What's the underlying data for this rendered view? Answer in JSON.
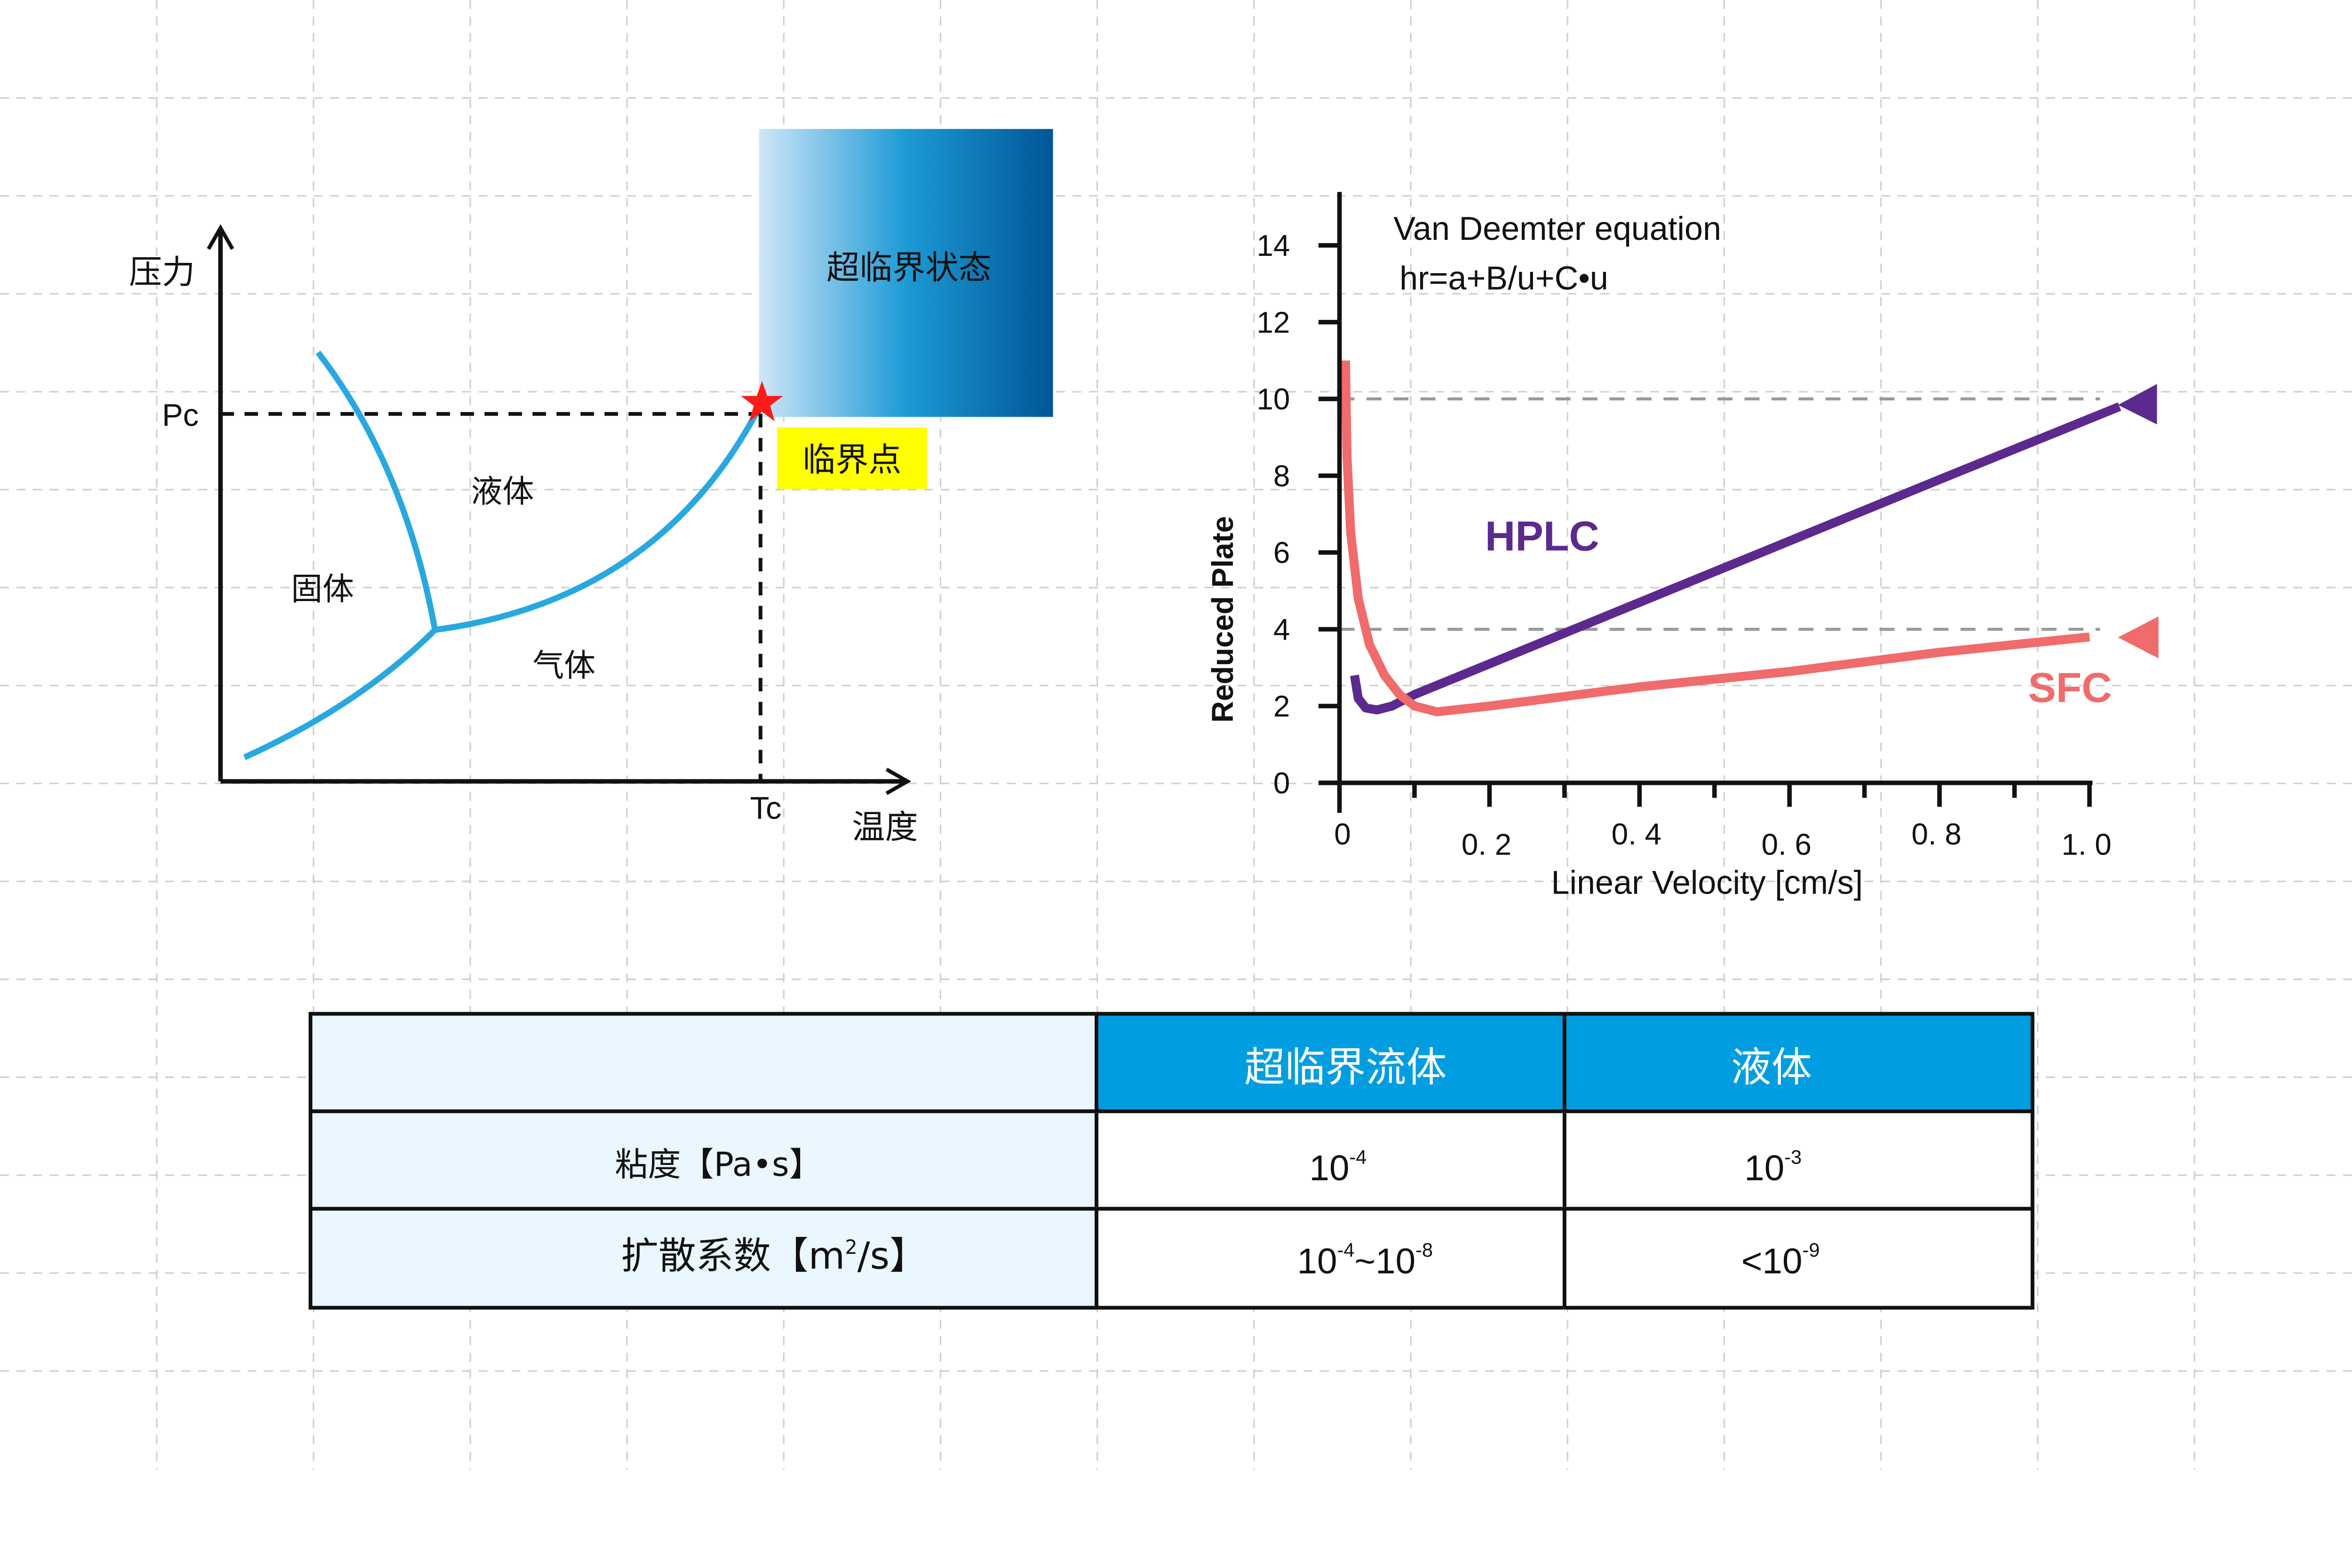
{
  "phase_diagram": {
    "y_axis_label": "压力",
    "x_axis_label": "温度",
    "pc_label": "Pc",
    "tc_label": "Tc",
    "regions": {
      "solid": "固体",
      "liquid": "液体",
      "gas": "气体"
    },
    "supercritical_box_label": "超临界状态",
    "critical_point_label": "临界点",
    "colors": {
      "curve": "#29a8e0",
      "star": "#ff1a1a",
      "label_bg": "#ffff00",
      "box_start": "#cfe6f7",
      "box_end": "#005696"
    }
  },
  "chart_data": {
    "type": "line",
    "title": "Van Deemter equation",
    "subtitle": "hr=a+B/u+C•u",
    "xlabel": "Linear Velocity [cm/s]",
    "ylabel": "Reduced Plate",
    "xlim": [
      0,
      1.0
    ],
    "ylim": [
      0,
      14
    ],
    "x_ticks": [
      "0",
      "0. 2",
      "0. 4",
      "0. 6",
      "0. 8",
      "1. 0"
    ],
    "x_tick_values": [
      0,
      0.2,
      0.4,
      0.6,
      0.8,
      1.0
    ],
    "y_ticks": [
      "0",
      "2",
      "4",
      "6",
      "8",
      "10",
      "12",
      "14"
    ],
    "y_tick_values": [
      0,
      2,
      4,
      6,
      8,
      10,
      12,
      14
    ],
    "reference_lines": [
      10,
      4
    ],
    "series": [
      {
        "name": "HPLC",
        "color": "#5c2a8e",
        "x": [
          0.02,
          0.025,
          0.035,
          0.05,
          0.07,
          0.1,
          0.2,
          0.4,
          0.6,
          0.8,
          1.04
        ],
        "y": [
          2.8,
          2.2,
          1.95,
          1.9,
          2.0,
          2.3,
          3.1,
          4.7,
          6.3,
          7.9,
          9.8
        ]
      },
      {
        "name": "SFC",
        "color": "#f06b6b",
        "x": [
          0.008,
          0.01,
          0.015,
          0.025,
          0.04,
          0.06,
          0.08,
          0.1,
          0.13,
          0.2,
          0.4,
          0.6,
          0.8,
          1.0
        ],
        "y": [
          11,
          8.5,
          6.5,
          4.8,
          3.6,
          2.8,
          2.3,
          2.0,
          1.85,
          2.0,
          2.5,
          2.9,
          3.4,
          3.8
        ]
      }
    ],
    "legend": "inline-right"
  },
  "table": {
    "headers": [
      "",
      "超临界流体",
      "液体"
    ],
    "rows": [
      {
        "label": "粘度【Pa•s】",
        "values": [
          {
            "base": "10",
            "exp": "-4"
          },
          {
            "base": "10",
            "exp": "-3"
          }
        ]
      },
      {
        "label_main": "扩散系数【m",
        "label_sup": "2",
        "label_tail": "/s】",
        "values": [
          {
            "base": "10",
            "exp": "-4",
            "mid": "~10",
            "exp2": "-8"
          },
          {
            "prefix": "<10",
            "exp": "-9"
          }
        ]
      }
    ],
    "colors": {
      "header_bg": "#009ee0",
      "label_bg": "#eaf7fe"
    }
  }
}
